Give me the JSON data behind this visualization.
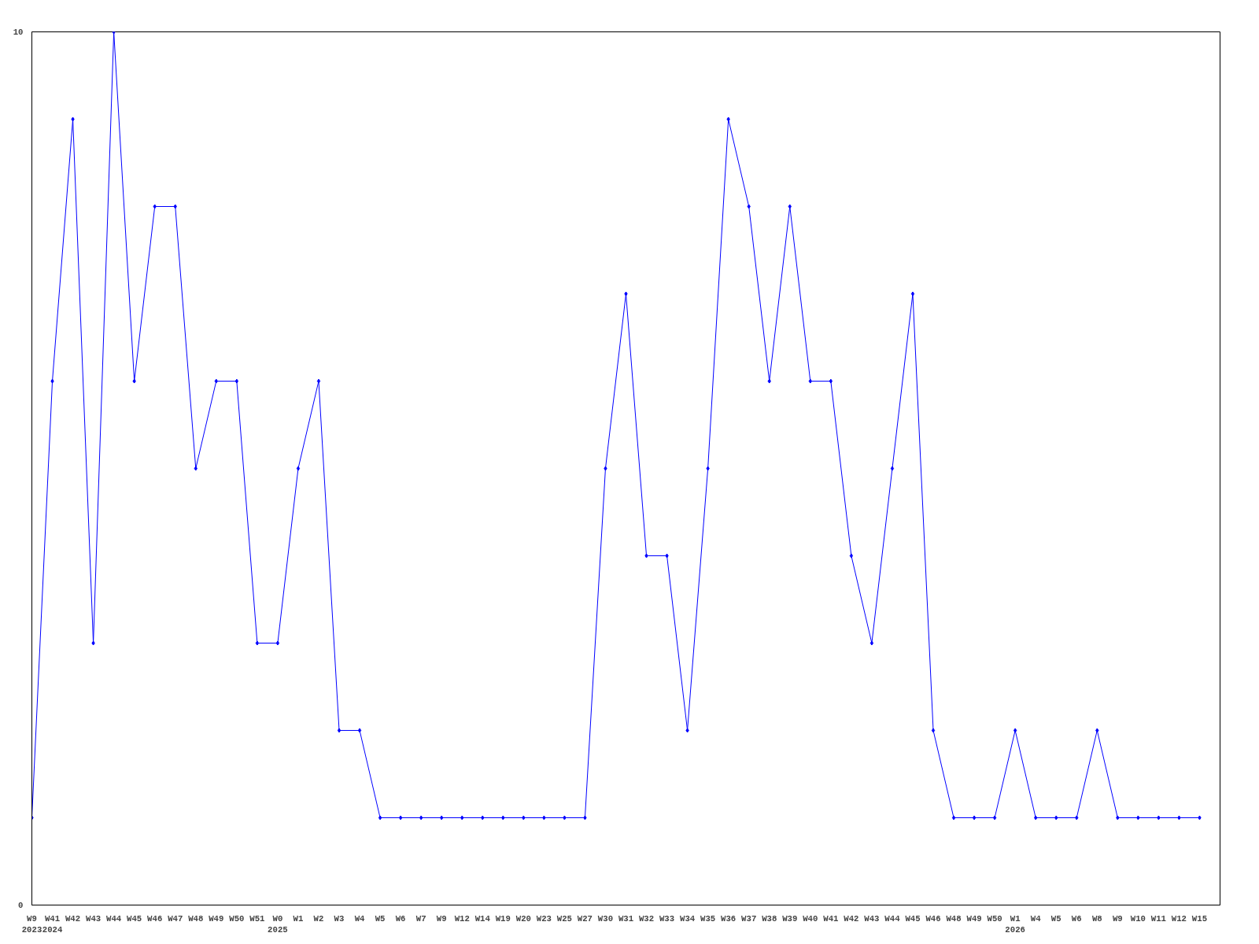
{
  "chart_data": {
    "type": "line",
    "categories": [
      "W9\n2023",
      "W41\n2024",
      "W42",
      "W43",
      "W44",
      "W45",
      "W46",
      "W47",
      "W48",
      "W49",
      "W50",
      "W51",
      "W0\n2025",
      "W1",
      "W2",
      "W3",
      "W4",
      "W5",
      "W6",
      "W7",
      "W9",
      "W12",
      "W14",
      "W19",
      "W20",
      "W23",
      "W25",
      "W27",
      "W30",
      "W31",
      "W32",
      "W33",
      "W34",
      "W35",
      "W36",
      "W37",
      "W38",
      "W39",
      "W40",
      "W41",
      "W42",
      "W43",
      "W44",
      "W45",
      "W46",
      "W48",
      "W49",
      "W50",
      "W1\n2026",
      "W4",
      "W5",
      "W6",
      "W8",
      "W9",
      "W10",
      "W11",
      "W12",
      "W15"
    ],
    "series": [
      {
        "color": "#0000ff",
        "values": [
          1,
          6,
          9,
          3,
          10,
          6,
          8,
          8,
          5,
          6,
          6,
          3,
          3,
          5,
          6,
          2,
          2,
          1,
          1,
          1,
          1,
          1,
          1,
          1,
          1,
          1,
          1,
          1,
          5,
          7,
          4,
          4,
          2,
          5,
          9,
          8,
          6,
          8,
          6,
          6,
          4,
          3,
          5,
          7,
          2,
          1,
          1,
          1,
          2,
          1,
          1,
          1,
          2,
          1,
          1,
          1,
          1,
          1
        ]
      }
    ],
    "ylim": [
      0,
      10
    ],
    "yticks": [
      0,
      10
    ],
    "grid": false,
    "marker": "diamond",
    "line_style": "solid"
  }
}
